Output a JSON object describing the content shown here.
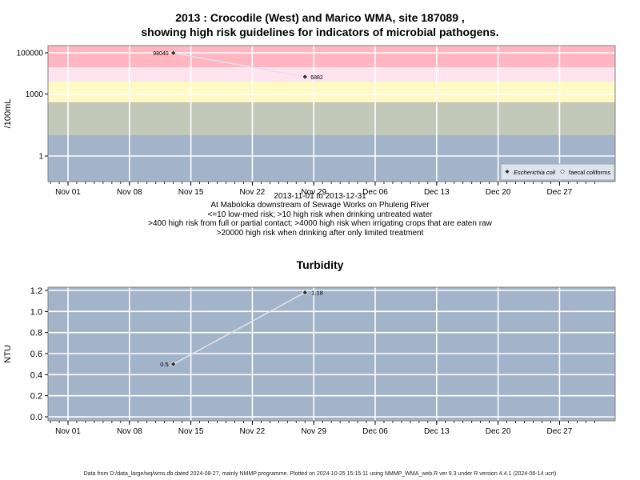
{
  "title_line1": "2013 : Crocodile (West) and Marico WMA, site 187089 ,",
  "title_line2": "showing high risk guidelines for indicators of microbial pathogens.",
  "subtitle_lines": [
    "2013-11-01 to 2013-12-31",
    "At Maboloka downstream of Sewage Works on Phuleng River",
    "<=10 low-med risk; >10 high risk when drinking untreated water",
    ">400 high risk from full or partial contact; >4000 high risk when irrigating crops that are eaten raw",
    ">20000 high risk when drinking after only limited treatment"
  ],
  "footer": "Data from D:/data_large/wq/wms.db dated 2024-08-27, mainly NMMP programme. Plotted on 2024-10-25 15:15:11 using NMMP_WMA_web.R ver 9.3 under R version 4.4.1 (2024-06-14 ucrt)",
  "colors": {
    "band_pink": "#ffb6c1",
    "band_lightpink": "#ffe4ef",
    "band_yellow": "#fff9c4",
    "band_sage": "#c3c9b9",
    "band_blue": "#a2b3ca",
    "plot_bg": "#a2b3ca",
    "series_line": "#e0e0e8",
    "point": "#303030"
  },
  "chart_data": [
    {
      "type": "line",
      "ylabel": "/100mL",
      "y_scale": "log",
      "ylim": [
        0.1,
        100000
      ],
      "y_ticks": [
        1,
        1000,
        100000
      ],
      "y_tick_labels": [
        "1",
        "1000",
        "100000"
      ],
      "risk_thresholds": [
        10,
        400,
        4000,
        20000
      ],
      "xlim": [
        "2013-10-28",
        "2013-12-31"
      ],
      "x_ticks": [
        "2013-11-01",
        "2013-11-08",
        "2013-11-15",
        "2013-11-22",
        "2013-11-29",
        "2013-12-06",
        "2013-12-13",
        "2013-12-20",
        "2013-12-27"
      ],
      "x_tick_labels": [
        "Nov 01",
        "Nov 08",
        "Nov 15",
        "Nov 22",
        "Nov 29",
        "Dec 06",
        "Dec 13",
        "Dec 20",
        "Dec 27"
      ],
      "legend_position": "bottom-right",
      "legend": [
        "Escherichia coli",
        "faecal coliforms"
      ],
      "series": [
        {
          "name": "Escherichia coli",
          "x": [
            "2013-11-13",
            "2013-11-28"
          ],
          "y": [
            98040,
            6882
          ],
          "labels": [
            "98040",
            "6882"
          ]
        }
      ]
    },
    {
      "type": "line",
      "title": "Turbidity",
      "ylabel": "NTU",
      "ylim": [
        0,
        1.2
      ],
      "y_ticks": [
        0,
        0.2,
        0.4,
        0.6,
        0.8,
        1.0,
        1.2
      ],
      "y_tick_labels": [
        "0.0",
        "0.2",
        "0.4",
        "0.6",
        "0.8",
        "1.0",
        "1.2"
      ],
      "xlim": [
        "2013-10-28",
        "2013-12-31"
      ],
      "x_ticks": [
        "2013-11-01",
        "2013-11-08",
        "2013-11-15",
        "2013-11-22",
        "2013-11-29",
        "2013-12-06",
        "2013-12-13",
        "2013-12-20",
        "2013-12-27"
      ],
      "x_tick_labels": [
        "Nov 01",
        "Nov 08",
        "Nov 15",
        "Nov 22",
        "Nov 29",
        "Dec 06",
        "Dec 13",
        "Dec 20",
        "Dec 27"
      ],
      "series": [
        {
          "x": [
            "2013-11-13",
            "2013-11-28"
          ],
          "y": [
            0.5,
            1.18
          ],
          "labels": [
            "0.5",
            "1.18"
          ]
        }
      ]
    }
  ]
}
